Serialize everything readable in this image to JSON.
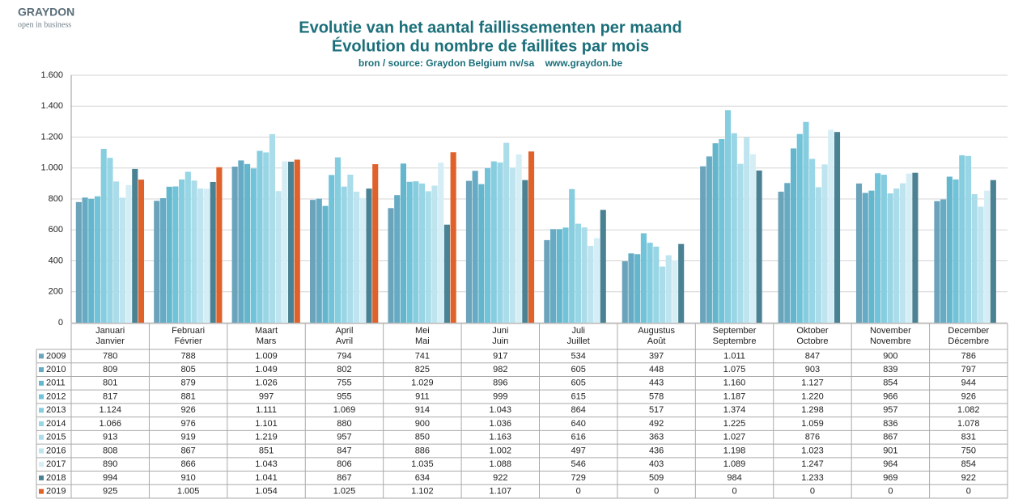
{
  "logo": {
    "name": "GRAYDON",
    "tagline": "open in business"
  },
  "chart_data": {
    "type": "bar",
    "title": "Evolutie van het aantal faillissementen per maand",
    "subtitle": "Évolution du nombre de faillites par mois",
    "source": "bron / source: Graydon Belgium nv/sa    www.graydon.be",
    "categories": [
      [
        "Januari",
        "Janvier"
      ],
      [
        "Februari",
        "Février"
      ],
      [
        "Maart",
        "Mars"
      ],
      [
        "April",
        "Avril"
      ],
      [
        "Mei",
        "Mai"
      ],
      [
        "Juni",
        "Juin"
      ],
      [
        "Juli",
        "Juillet"
      ],
      [
        "Augustus",
        "Août"
      ],
      [
        "September",
        "Septembre"
      ],
      [
        "Oktober",
        "Octobre"
      ],
      [
        "November",
        "Novembre"
      ],
      [
        "December",
        "Décembre"
      ]
    ],
    "ylim": [
      0,
      1600
    ],
    "yticks": [
      0,
      200,
      400,
      600,
      800,
      {
        "value": 1000,
        "label": "1.000"
      },
      {
        "value": 1200,
        "label": "1.200"
      },
      {
        "value": 1400,
        "label": "1.400"
      },
      {
        "value": 1600,
        "label": "1.600"
      }
    ],
    "grid": true,
    "series": [
      {
        "name": "2009",
        "color": "#6ba3ba",
        "values": [
          780,
          788,
          1009,
          794,
          741,
          917,
          534,
          397,
          1011,
          847,
          900,
          786
        ],
        "value_labels": [
          "780",
          "788",
          "1.009",
          "794",
          "741",
          "917",
          "534",
          "397",
          "1.011",
          "847",
          "900",
          "786"
        ]
      },
      {
        "name": "2010",
        "color": "#66abc3",
        "values": [
          809,
          805,
          1049,
          802,
          825,
          982,
          605,
          448,
          1075,
          903,
          839,
          797
        ],
        "value_labels": [
          "809",
          "805",
          "1.049",
          "802",
          "825",
          "982",
          "605",
          "448",
          "1.075",
          "903",
          "839",
          "797"
        ]
      },
      {
        "name": "2011",
        "color": "#64b6cd",
        "values": [
          801,
          879,
          1026,
          755,
          1029,
          896,
          605,
          443,
          1160,
          1127,
          854,
          944
        ],
        "value_labels": [
          "801",
          "879",
          "1.026",
          "755",
          "1.029",
          "896",
          "605",
          "443",
          "1.160",
          "1.127",
          "854",
          "944"
        ]
      },
      {
        "name": "2012",
        "color": "#70c3d8",
        "values": [
          817,
          881,
          997,
          955,
          911,
          999,
          615,
          578,
          1187,
          1220,
          966,
          926
        ],
        "value_labels": [
          "817",
          "881",
          "997",
          "955",
          "911",
          "999",
          "615",
          "578",
          "1.187",
          "1.220",
          "966",
          "926"
        ]
      },
      {
        "name": "2013",
        "color": "#86cde0",
        "values": [
          1124,
          926,
          1111,
          1069,
          914,
          1043,
          864,
          517,
          1374,
          1298,
          957,
          1082
        ],
        "value_labels": [
          "1.124",
          "926",
          "1.111",
          "1.069",
          "914",
          "1.043",
          "864",
          "517",
          "1.374",
          "1.298",
          "957",
          "1.082"
        ]
      },
      {
        "name": "2014",
        "color": "#98d5e5",
        "values": [
          1066,
          976,
          1101,
          880,
          900,
          1036,
          640,
          492,
          1225,
          1059,
          836,
          1078
        ],
        "value_labels": [
          "1.066",
          "976",
          "1.101",
          "880",
          "900",
          "1.036",
          "640",
          "492",
          "1.225",
          "1.059",
          "836",
          "1.078"
        ]
      },
      {
        "name": "2015",
        "color": "#aadcea",
        "values": [
          913,
          919,
          1219,
          957,
          850,
          1163,
          616,
          363,
          1027,
          876,
          867,
          831
        ],
        "value_labels": [
          "913",
          "919",
          "1.219",
          "957",
          "850",
          "1.163",
          "616",
          "363",
          "1.027",
          "876",
          "867",
          "831"
        ]
      },
      {
        "name": "2016",
        "color": "#bde4ef",
        "values": [
          808,
          867,
          851,
          847,
          886,
          1002,
          497,
          436,
          1198,
          1023,
          901,
          750
        ],
        "value_labels": [
          "808",
          "867",
          "851",
          "847",
          "886",
          "1.002",
          "497",
          "436",
          "1.198",
          "1.023",
          "901",
          "750"
        ]
      },
      {
        "name": "2017",
        "color": "#d5eef5",
        "values": [
          890,
          866,
          1043,
          806,
          1035,
          1088,
          546,
          403,
          1089,
          1247,
          964,
          854
        ],
        "value_labels": [
          "890",
          "866",
          "1.043",
          "806",
          "1.035",
          "1.088",
          "546",
          "403",
          "1.089",
          "1.247",
          "964",
          "854"
        ]
      },
      {
        "name": "2018",
        "color": "#4a8293",
        "values": [
          994,
          910,
          1041,
          867,
          634,
          922,
          729,
          509,
          984,
          1233,
          969,
          922
        ],
        "value_labels": [
          "994",
          "910",
          "1.041",
          "867",
          "634",
          "922",
          "729",
          "509",
          "984",
          "1.233",
          "969",
          "922"
        ]
      },
      {
        "name": "2019",
        "color": "#e0622a",
        "values": [
          925,
          1005,
          1054,
          1025,
          1102,
          1107,
          0,
          0,
          0,
          0,
          0,
          0
        ],
        "value_labels": [
          "925",
          "1.005",
          "1.054",
          "1.025",
          "1.102",
          "1.107",
          "0",
          "0",
          "0",
          "0",
          "0",
          "0"
        ]
      }
    ]
  }
}
